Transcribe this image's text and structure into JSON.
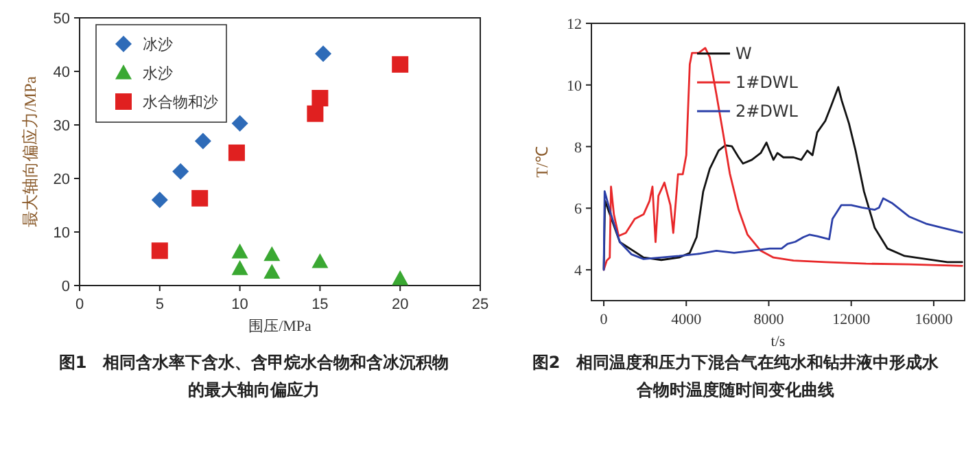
{
  "chart_data": [
    {
      "type": "scatter",
      "xlabel": "围压/MPa",
      "ylabel": "最大轴向偏应力/MPa",
      "xlim": [
        0,
        25
      ],
      "ylim": [
        0,
        50
      ],
      "xticks": [
        0,
        5,
        10,
        15,
        20,
        25
      ],
      "yticks": [
        0,
        10,
        20,
        30,
        40,
        50
      ],
      "legend": "top left",
      "grid": false,
      "annotations": [
        "图1　相同含水率下含水、含甲烷水合物和含冰沉积物的最大轴向偏应力"
      ],
      "series": [
        {
          "name": "冰沙",
          "color": "#2e6bb8",
          "marker": "diamond",
          "x": [
            5,
            6.3,
            7.7,
            10,
            15.2
          ],
          "values": [
            16,
            21.3,
            27,
            30.3,
            43.3
          ]
        },
        {
          "name": "水沙",
          "color": "#3aa832",
          "marker": "triangle",
          "x": [
            10,
            10,
            12,
            12,
            15,
            20
          ],
          "values": [
            6.3,
            3.2,
            5.8,
            2.5,
            4.5,
            1.3
          ]
        },
        {
          "name": "水合物和沙",
          "color": "#e02020",
          "marker": "square",
          "x": [
            5,
            7.5,
            9.8,
            14.7,
            15,
            20
          ],
          "values": [
            6.5,
            16.3,
            24.8,
            32.1,
            35,
            41.3
          ]
        }
      ]
    },
    {
      "type": "line",
      "xlabel": "t/s",
      "ylabel": "T/℃",
      "xlim": [
        -600,
        17500
      ],
      "ylim": [
        3,
        12
      ],
      "xticks": [
        0,
        4000,
        8000,
        12000,
        16000
      ],
      "yticks": [
        4,
        6,
        8,
        10,
        12
      ],
      "legend": "top",
      "grid": false,
      "annotations": [
        "图2　相同温度和压力下混合气在纯水和钻井液中形成水合物时温度随时间变化曲线"
      ],
      "series": [
        {
          "name": "W",
          "color": "#111111",
          "x": [
            0,
            58,
            778,
            1930,
            2790,
            3650,
            4170,
            4500,
            4820,
            5140,
            5570,
            5890,
            6210,
            6540,
            6750,
            7180,
            7610,
            7890,
            8040,
            8230,
            8420,
            8710,
            9200,
            9580,
            9870,
            10120,
            10350,
            10740,
            11020,
            11370,
            11540,
            11890,
            12210,
            12620,
            13140,
            13760,
            14590,
            15620,
            16660,
            17380
          ],
          "values": [
            4.03,
            6.24,
            4.9,
            4.4,
            4.32,
            4.4,
            4.55,
            5.06,
            6.54,
            7.28,
            7.87,
            8.04,
            8.01,
            7.65,
            7.45,
            7.57,
            7.79,
            8.13,
            7.87,
            7.57,
            7.79,
            7.65,
            7.65,
            7.57,
            7.87,
            7.72,
            8.46,
            8.83,
            9.31,
            9.93,
            9.49,
            8.75,
            7.87,
            6.54,
            5.36,
            4.69,
            4.45,
            4.35,
            4.25,
            4.25
          ]
        },
        {
          "name": "1#DWL",
          "color": "#e8282a",
          "x": [
            0,
            144,
            290,
            350,
            490,
            720,
            1070,
            1500,
            1930,
            2220,
            2360,
            2510,
            2650,
            2940,
            3230,
            3370,
            3600,
            3830,
            4000,
            4170,
            4280,
            4600,
            4920,
            5140,
            5460,
            5780,
            6110,
            6540,
            6970,
            7610,
            8230,
            9200,
            10740,
            12720,
            14800,
            17380
          ],
          "values": [
            4.0,
            4.3,
            4.4,
            6.7,
            5.8,
            5.1,
            5.2,
            5.65,
            5.8,
            6.24,
            6.7,
            4.9,
            6.4,
            6.83,
            6.1,
            5.2,
            7.1,
            7.1,
            7.72,
            10.67,
            11.04,
            11.04,
            11.2,
            10.9,
            9.7,
            8.46,
            7.13,
            5.95,
            5.14,
            4.62,
            4.4,
            4.3,
            4.25,
            4.2,
            4.18,
            4.13
          ]
        },
        {
          "name": "2#DWL",
          "color": "#2b3fa8",
          "x": [
            0,
            40,
            350,
            780,
            1350,
            1930,
            2790,
            3650,
            4600,
            5460,
            6320,
            7180,
            8040,
            8620,
            8910,
            9290,
            9680,
            9970,
            10350,
            10930,
            11090,
            11520,
            12000,
            12520,
            13140,
            13350,
            13550,
            13970,
            14800,
            15620,
            16450,
            17380
          ],
          "values": [
            4.0,
            6.55,
            5.8,
            4.9,
            4.5,
            4.35,
            4.4,
            4.45,
            4.52,
            4.62,
            4.55,
            4.62,
            4.69,
            4.69,
            4.84,
            4.91,
            5.06,
            5.14,
            5.09,
            4.99,
            5.65,
            6.1,
            6.1,
            6.02,
            5.95,
            6.02,
            6.32,
            6.17,
            5.73,
            5.5,
            5.36,
            5.21
          ]
        }
      ]
    }
  ]
}
